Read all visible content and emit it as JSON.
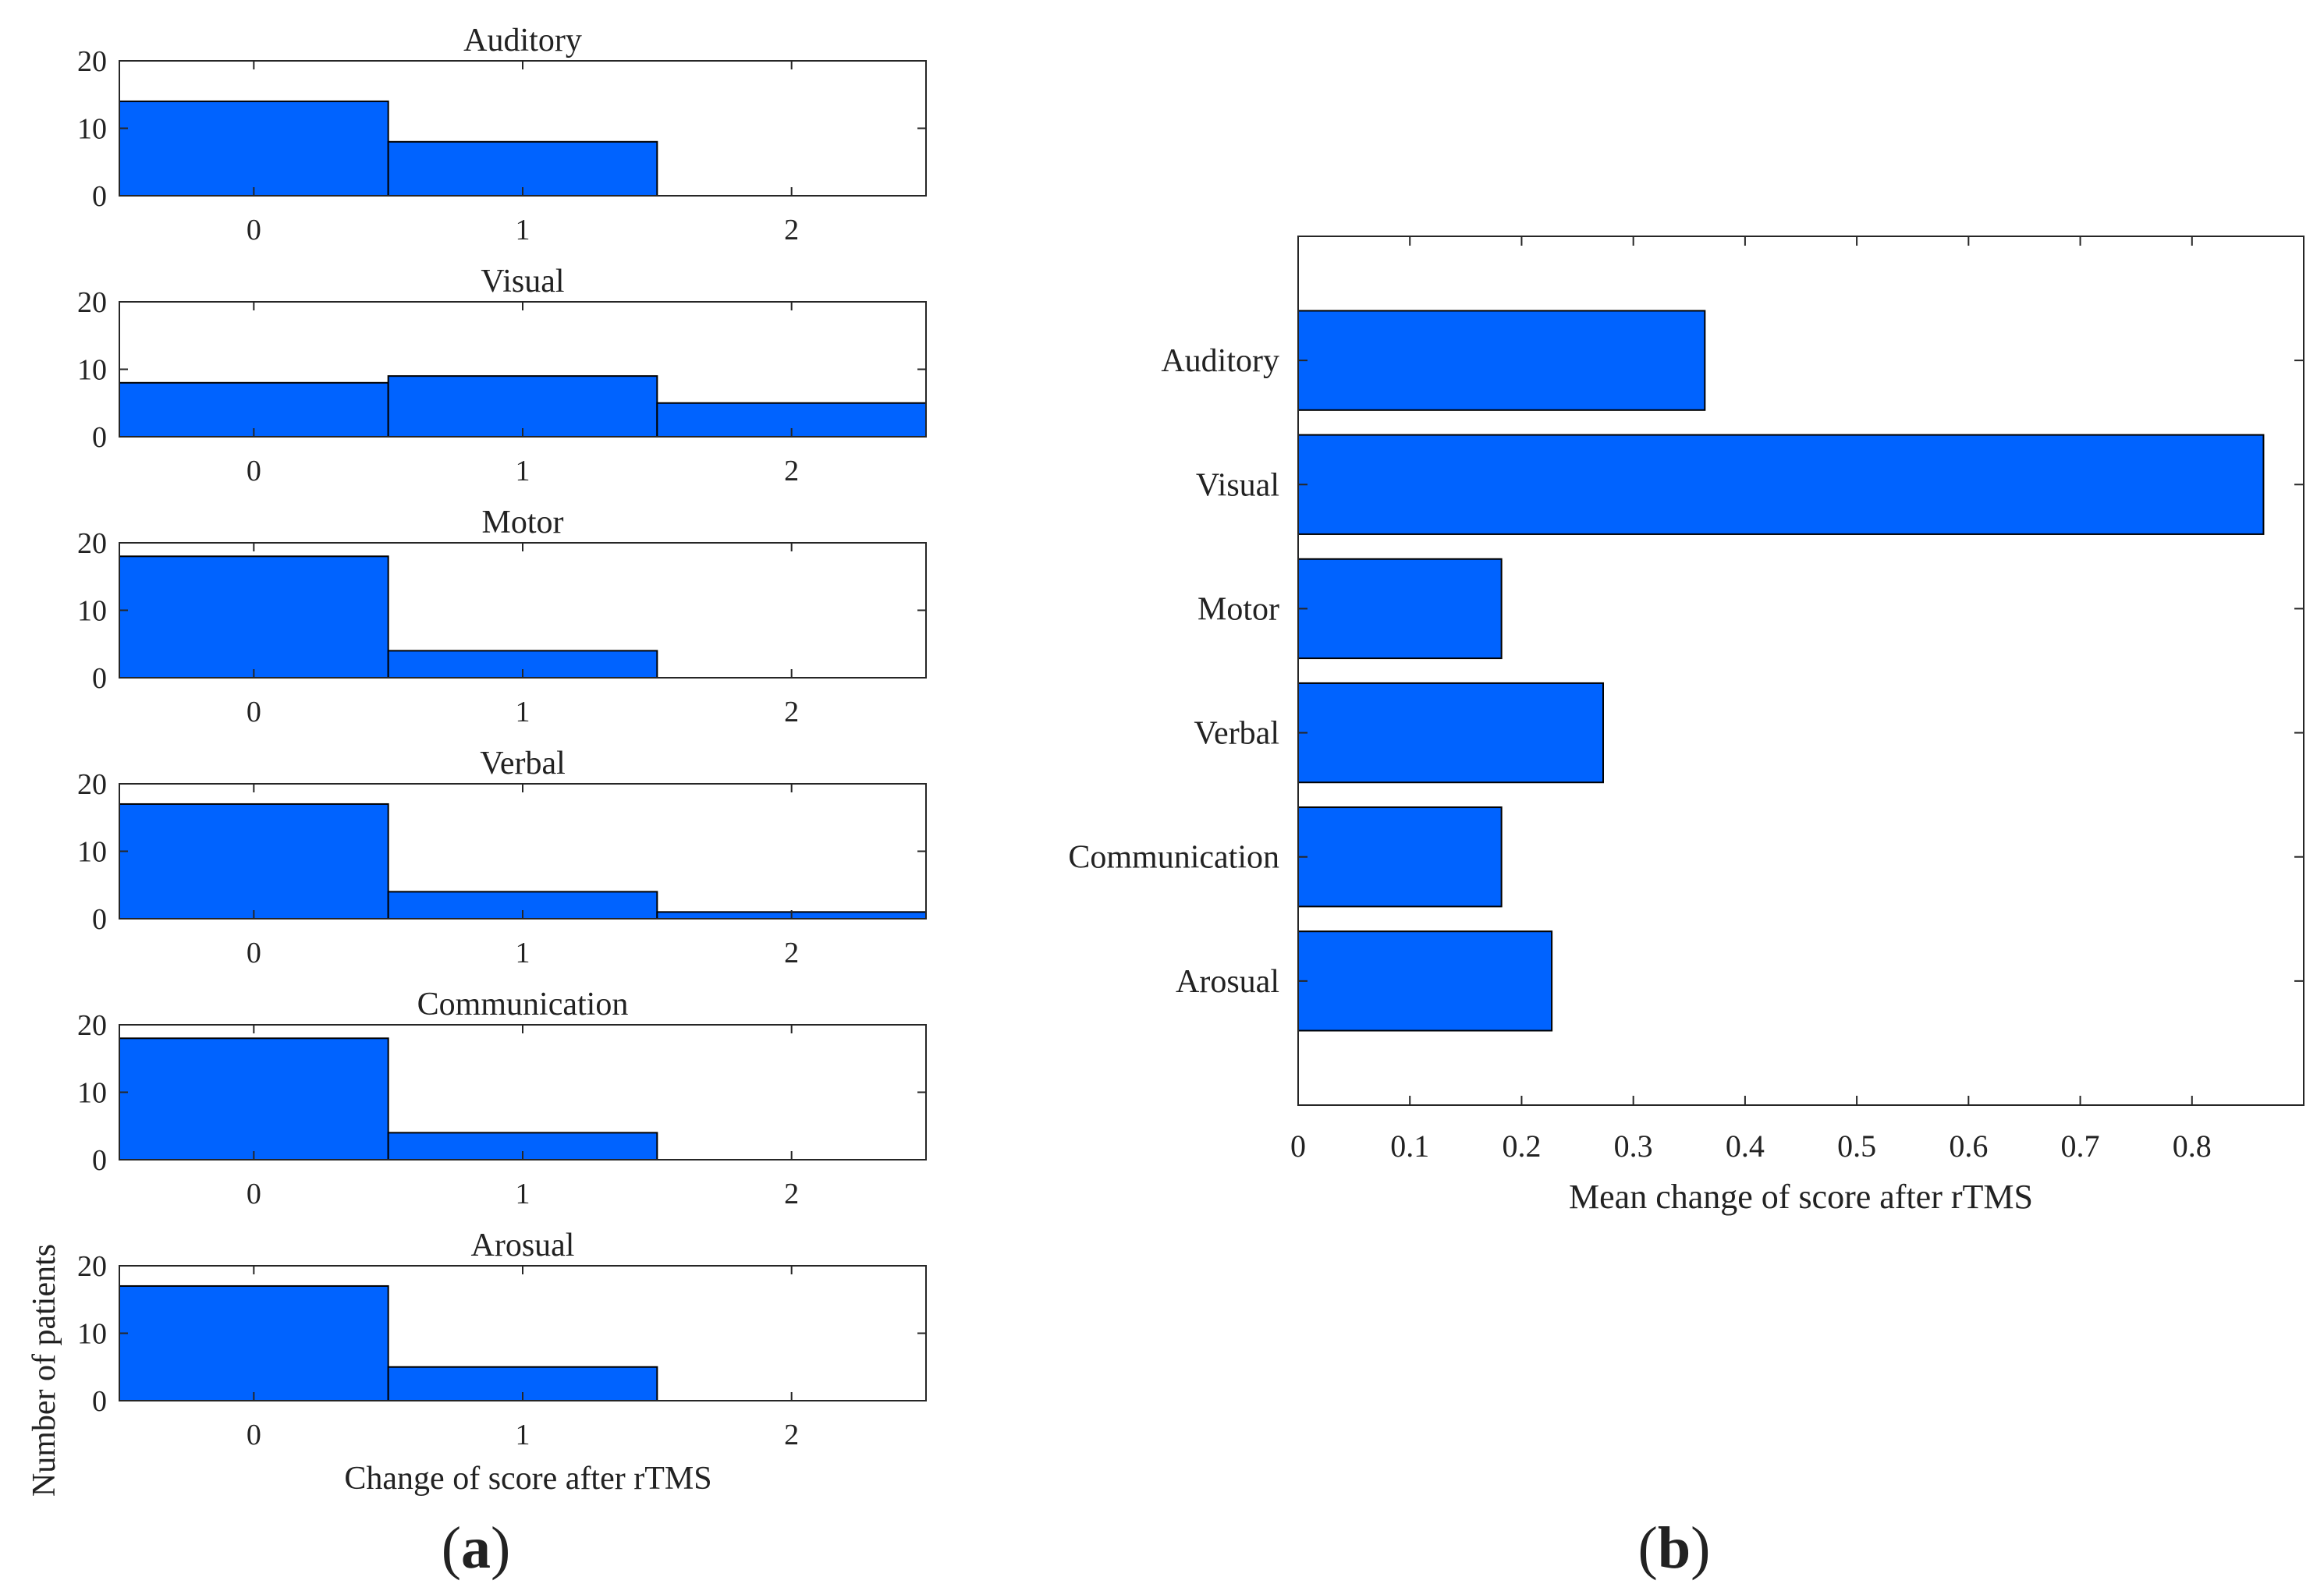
{
  "chart_data": [
    {
      "panel": "a",
      "type": "bar",
      "chart_kind": "histogram-grid",
      "ylabel": "Number of patients",
      "xlabel": "Change of score after rTMS",
      "categories": [
        "0",
        "1",
        "2"
      ],
      "ylim": [
        0,
        20
      ],
      "yticks": [
        "0",
        "10",
        "20"
      ],
      "subplots": [
        {
          "title": "Auditory",
          "values": [
            14,
            8,
            0
          ]
        },
        {
          "title": "Visual",
          "values": [
            8,
            9,
            5
          ]
        },
        {
          "title": "Motor",
          "values": [
            18,
            4,
            0
          ]
        },
        {
          "title": "Verbal",
          "values": [
            17,
            4,
            1
          ]
        },
        {
          "title": "Communication",
          "values": [
            18,
            4,
            0
          ]
        },
        {
          "title": "Arosual",
          "values": [
            17,
            5,
            0
          ]
        }
      ]
    },
    {
      "panel": "b",
      "type": "bar",
      "orientation": "horizontal",
      "xlabel": "Mean change of score after rTMS",
      "categories": [
        "Auditory",
        "Visual",
        "Motor",
        "Verbal",
        "Communication",
        "Arosual"
      ],
      "values": [
        0.364,
        0.864,
        0.182,
        0.273,
        0.182,
        0.227
      ],
      "xlim": [
        0,
        0.9
      ],
      "xticks": [
        "0",
        "0.1",
        "0.2",
        "0.3",
        "0.4",
        "0.5",
        "0.6",
        "0.7",
        "0.8"
      ]
    }
  ],
  "panel_labels": {
    "a_open": "(",
    "a_letter": "a",
    "a_close": ")",
    "b_open": "(",
    "b_letter": "b",
    "b_close": ")"
  },
  "colors": {
    "bar": "#0063ff",
    "axis": "#262626"
  }
}
